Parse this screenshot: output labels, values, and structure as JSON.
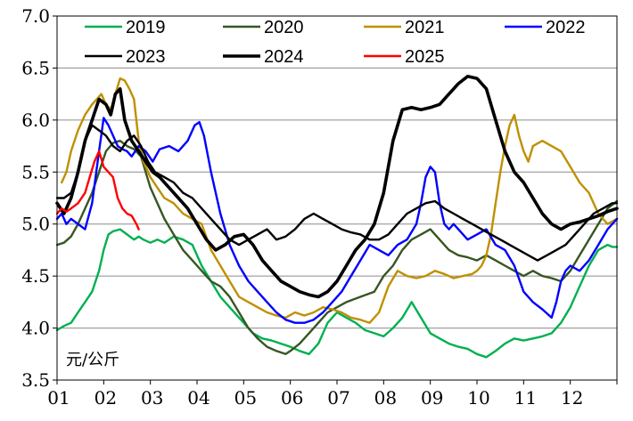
{
  "chart_data": {
    "type": "line",
    "title": "",
    "xlabel": "",
    "ylabel": "",
    "unit_label": "元/公斤",
    "x_categories": [
      "01",
      "02",
      "03",
      "04",
      "05",
      "06",
      "07",
      "08",
      "09",
      "10",
      "11",
      "12"
    ],
    "xlim": [
      1,
      13
    ],
    "ylim": [
      3.5,
      7.0
    ],
    "y_ticks": [
      "3.5",
      "4.0",
      "4.5",
      "5.0",
      "5.5",
      "6.0",
      "6.5",
      "7.0"
    ],
    "grid": "horizontal",
    "legend_position": "top",
    "series": [
      {
        "name": "2019",
        "color": "#00b050",
        "width": 2.4,
        "x": [
          1.0,
          1.15,
          1.3,
          1.45,
          1.6,
          1.75,
          1.9,
          2.0,
          2.1,
          2.2,
          2.35,
          2.5,
          2.65,
          2.75,
          2.85,
          3.0,
          3.15,
          3.3,
          3.5,
          3.7,
          3.9,
          4.1,
          4.3,
          4.5,
          4.7,
          4.9,
          5.0,
          5.2,
          5.4,
          5.6,
          5.8,
          6.0,
          6.2,
          6.4,
          6.6,
          6.8,
          7.0,
          7.2,
          7.4,
          7.6,
          7.8,
          8.0,
          8.2,
          8.4,
          8.6,
          8.8,
          9.0,
          9.2,
          9.4,
          9.6,
          9.8,
          10.0,
          10.2,
          10.4,
          10.6,
          10.8,
          11.0,
          11.2,
          11.4,
          11.6,
          11.8,
          12.0,
          12.2,
          12.4,
          12.6,
          12.8,
          12.9,
          13.0
        ],
        "y": [
          3.98,
          4.02,
          4.05,
          4.15,
          4.25,
          4.35,
          4.55,
          4.75,
          4.9,
          4.93,
          4.95,
          4.9,
          4.85,
          4.88,
          4.85,
          4.82,
          4.85,
          4.82,
          4.88,
          4.85,
          4.8,
          4.6,
          4.45,
          4.3,
          4.2,
          4.1,
          4.05,
          3.95,
          3.9,
          3.88,
          3.85,
          3.82,
          3.78,
          3.75,
          3.85,
          4.05,
          4.15,
          4.1,
          4.05,
          3.98,
          3.95,
          3.92,
          4.0,
          4.1,
          4.25,
          4.1,
          3.95,
          3.9,
          3.85,
          3.82,
          3.8,
          3.75,
          3.72,
          3.78,
          3.85,
          3.9,
          3.88,
          3.9,
          3.92,
          3.95,
          4.05,
          4.2,
          4.4,
          4.6,
          4.75,
          4.8,
          4.78,
          4.78
        ]
      },
      {
        "name": "2020",
        "color": "#375623",
        "width": 2.4,
        "x": [
          1.0,
          1.15,
          1.3,
          1.45,
          1.6,
          1.75,
          1.9,
          2.05,
          2.2,
          2.35,
          2.5,
          2.65,
          2.8,
          2.9,
          3.0,
          3.15,
          3.3,
          3.5,
          3.7,
          3.9,
          4.1,
          4.3,
          4.5,
          4.7,
          4.9,
          5.1,
          5.3,
          5.5,
          5.7,
          5.9,
          6.0,
          6.2,
          6.4,
          6.6,
          6.8,
          7.0,
          7.2,
          7.5,
          7.8,
          8.0,
          8.2,
          8.4,
          8.6,
          8.8,
          9.0,
          9.2,
          9.4,
          9.6,
          9.8,
          10.0,
          10.2,
          10.4,
          10.6,
          10.8,
          11.0,
          11.2,
          11.4,
          11.6,
          11.8,
          12.0,
          12.2,
          12.4,
          12.6,
          12.8,
          13.0
        ],
        "y": [
          4.8,
          4.82,
          4.88,
          5.0,
          5.15,
          5.3,
          5.5,
          5.7,
          5.78,
          5.8,
          5.75,
          5.72,
          5.65,
          5.5,
          5.35,
          5.2,
          5.05,
          4.9,
          4.75,
          4.65,
          4.55,
          4.45,
          4.4,
          4.3,
          4.15,
          4.0,
          3.9,
          3.82,
          3.78,
          3.75,
          3.78,
          3.85,
          3.95,
          4.05,
          4.15,
          4.2,
          4.25,
          4.3,
          4.35,
          4.5,
          4.6,
          4.75,
          4.85,
          4.9,
          4.95,
          4.85,
          4.75,
          4.7,
          4.68,
          4.65,
          4.7,
          4.65,
          4.6,
          4.55,
          4.5,
          4.55,
          4.5,
          4.48,
          4.45,
          4.55,
          4.7,
          4.85,
          5.0,
          5.15,
          5.22
        ]
      },
      {
        "name": "2021",
        "color": "#bf9000",
        "width": 2.4,
        "x": [
          1.1,
          1.2,
          1.3,
          1.45,
          1.6,
          1.75,
          1.85,
          1.95,
          2.05,
          2.15,
          2.25,
          2.35,
          2.45,
          2.55,
          2.65,
          2.75,
          2.85,
          3.0,
          3.15,
          3.3,
          3.5,
          3.7,
          3.9,
          4.1,
          4.3,
          4.5,
          4.7,
          4.9,
          5.1,
          5.3,
          5.5,
          5.7,
          5.9,
          6.1,
          6.3,
          6.5,
          6.7,
          6.9,
          7.1,
          7.3,
          7.5,
          7.7,
          7.9,
          8.1,
          8.3,
          8.5,
          8.7,
          8.9,
          9.1,
          9.3,
          9.5,
          9.7,
          9.9,
          10.0,
          10.1,
          10.2,
          10.3,
          10.4,
          10.5,
          10.6,
          10.7,
          10.8,
          10.9,
          11.0,
          11.1,
          11.2,
          11.4,
          11.6,
          11.8,
          12.0,
          12.2,
          12.4,
          12.6,
          12.8,
          13.0
        ],
        "y": [
          5.4,
          5.5,
          5.7,
          5.9,
          6.05,
          6.15,
          6.2,
          6.25,
          6.15,
          6.1,
          6.25,
          6.4,
          6.38,
          6.3,
          6.2,
          5.8,
          5.6,
          5.45,
          5.35,
          5.25,
          5.2,
          5.1,
          5.05,
          5.0,
          4.75,
          4.6,
          4.45,
          4.3,
          4.25,
          4.2,
          4.15,
          4.12,
          4.1,
          4.15,
          4.12,
          4.15,
          4.2,
          4.18,
          4.15,
          4.1,
          4.08,
          4.05,
          4.15,
          4.4,
          4.55,
          4.5,
          4.48,
          4.5,
          4.55,
          4.52,
          4.48,
          4.5,
          4.52,
          4.55,
          4.6,
          4.7,
          4.9,
          5.2,
          5.5,
          5.75,
          5.95,
          6.05,
          5.85,
          5.7,
          5.6,
          5.75,
          5.8,
          5.75,
          5.7,
          5.55,
          5.4,
          5.3,
          5.1,
          5.0,
          5.05
        ]
      },
      {
        "name": "2022",
        "color": "#0000ff",
        "width": 2.4,
        "x": [
          1.0,
          1.1,
          1.2,
          1.3,
          1.45,
          1.6,
          1.75,
          1.9,
          2.0,
          2.1,
          2.2,
          2.3,
          2.4,
          2.5,
          2.6,
          2.75,
          2.9,
          3.05,
          3.2,
          3.4,
          3.6,
          3.8,
          3.95,
          4.05,
          4.15,
          4.3,
          4.5,
          4.7,
          4.9,
          5.1,
          5.3,
          5.5,
          5.7,
          5.9,
          6.1,
          6.3,
          6.5,
          6.7,
          6.9,
          7.1,
          7.3,
          7.5,
          7.7,
          7.9,
          8.1,
          8.3,
          8.5,
          8.7,
          8.8,
          8.9,
          9.0,
          9.1,
          9.2,
          9.3,
          9.4,
          9.5,
          9.6,
          9.8,
          10.0,
          10.2,
          10.4,
          10.6,
          10.8,
          11.0,
          11.2,
          11.4,
          11.6,
          11.7,
          11.8,
          11.9,
          12.0,
          12.2,
          12.4,
          12.6,
          12.8,
          13.0
        ],
        "y": [
          5.05,
          5.1,
          5.0,
          5.05,
          5.0,
          4.95,
          5.2,
          5.7,
          6.02,
          5.95,
          5.85,
          5.75,
          5.72,
          5.7,
          5.65,
          5.75,
          5.7,
          5.6,
          5.72,
          5.75,
          5.7,
          5.8,
          5.95,
          5.98,
          5.85,
          5.5,
          5.1,
          4.8,
          4.6,
          4.45,
          4.35,
          4.25,
          4.15,
          4.08,
          4.05,
          4.05,
          4.08,
          4.15,
          4.25,
          4.35,
          4.5,
          4.65,
          4.8,
          4.75,
          4.7,
          4.8,
          4.85,
          5.0,
          5.2,
          5.45,
          5.55,
          5.5,
          5.2,
          5.0,
          4.95,
          5.0,
          4.95,
          4.85,
          4.9,
          4.95,
          4.8,
          4.75,
          4.6,
          4.35,
          4.25,
          4.18,
          4.1,
          4.25,
          4.45,
          4.55,
          4.6,
          4.55,
          4.65,
          4.8,
          4.95,
          5.05
        ]
      },
      {
        "name": "2023",
        "color": "#000000",
        "width": 2.4,
        "x": [
          1.0,
          1.15,
          1.3,
          1.45,
          1.6,
          1.75,
          1.9,
          2.05,
          2.2,
          2.35,
          2.5,
          2.65,
          2.8,
          2.95,
          3.1,
          3.3,
          3.5,
          3.7,
          3.9,
          4.1,
          4.3,
          4.5,
          4.7,
          4.9,
          5.1,
          5.3,
          5.5,
          5.7,
          5.9,
          6.1,
          6.3,
          6.5,
          6.7,
          6.9,
          7.1,
          7.3,
          7.5,
          7.7,
          7.9,
          8.1,
          8.3,
          8.5,
          8.7,
          8.9,
          9.1,
          9.3,
          9.5,
          9.7,
          9.9,
          10.1,
          10.3,
          10.5,
          10.7,
          10.9,
          11.1,
          11.3,
          11.5,
          11.7,
          11.9,
          12.1,
          12.3,
          12.5,
          12.7,
          12.9,
          13.0
        ],
        "y": [
          5.25,
          5.25,
          5.3,
          5.5,
          5.8,
          5.95,
          5.9,
          5.85,
          5.75,
          5.7,
          5.8,
          5.85,
          5.75,
          5.6,
          5.5,
          5.45,
          5.4,
          5.3,
          5.25,
          5.15,
          5.05,
          4.95,
          4.85,
          4.8,
          4.85,
          4.9,
          4.95,
          4.85,
          4.88,
          4.95,
          5.05,
          5.1,
          5.05,
          5.0,
          4.95,
          4.92,
          4.9,
          4.85,
          4.85,
          4.9,
          5.0,
          5.1,
          5.15,
          5.2,
          5.22,
          5.15,
          5.1,
          5.05,
          5.0,
          4.95,
          4.9,
          4.85,
          4.8,
          4.75,
          4.7,
          4.65,
          4.7,
          4.75,
          4.8,
          4.9,
          5.0,
          5.1,
          5.15,
          5.2,
          5.2
        ]
      },
      {
        "name": "2024",
        "color": "#000000",
        "width": 3.6,
        "x": [
          1.0,
          1.15,
          1.3,
          1.45,
          1.6,
          1.75,
          1.9,
          2.05,
          2.15,
          2.25,
          2.35,
          2.45,
          2.6,
          2.75,
          2.9,
          3.05,
          3.2,
          3.4,
          3.6,
          3.8,
          4.0,
          4.2,
          4.4,
          4.6,
          4.8,
          5.0,
          5.2,
          5.4,
          5.6,
          5.8,
          6.0,
          6.2,
          6.4,
          6.6,
          6.8,
          7.0,
          7.2,
          7.4,
          7.6,
          7.8,
          8.0,
          8.2,
          8.4,
          8.6,
          8.8,
          9.0,
          9.2,
          9.4,
          9.6,
          9.8,
          10.0,
          10.2,
          10.4,
          10.6,
          10.8,
          11.0,
          11.2,
          11.4,
          11.6,
          11.8,
          12.0,
          12.2,
          12.4,
          12.6,
          12.8,
          13.0
        ],
        "y": [
          5.2,
          5.1,
          5.25,
          5.5,
          5.8,
          6.0,
          6.2,
          6.15,
          6.05,
          6.25,
          6.3,
          6.0,
          5.8,
          5.7,
          5.6,
          5.5,
          5.45,
          5.35,
          5.25,
          5.15,
          5.0,
          4.85,
          4.75,
          4.8,
          4.88,
          4.9,
          4.8,
          4.65,
          4.55,
          4.45,
          4.4,
          4.35,
          4.32,
          4.3,
          4.35,
          4.45,
          4.6,
          4.75,
          4.85,
          5.0,
          5.3,
          5.8,
          6.1,
          6.12,
          6.1,
          6.12,
          6.15,
          6.25,
          6.35,
          6.42,
          6.4,
          6.3,
          6.0,
          5.7,
          5.5,
          5.4,
          5.25,
          5.1,
          5.0,
          4.95,
          5.0,
          5.02,
          5.05,
          5.08,
          5.12,
          5.15
        ]
      },
      {
        "name": "2025",
        "color": "#ff0000",
        "width": 2.4,
        "x": [
          1.0,
          1.1,
          1.2,
          1.3,
          1.45,
          1.6,
          1.7,
          1.8,
          1.9,
          2.0,
          2.1,
          2.2,
          2.3,
          2.4,
          2.5,
          2.6,
          2.7,
          2.75
        ],
        "y": [
          5.1,
          5.15,
          5.12,
          5.15,
          5.2,
          5.3,
          5.45,
          5.6,
          5.7,
          5.55,
          5.5,
          5.45,
          5.25,
          5.15,
          5.1,
          5.08,
          5.0,
          4.95
        ]
      }
    ]
  }
}
